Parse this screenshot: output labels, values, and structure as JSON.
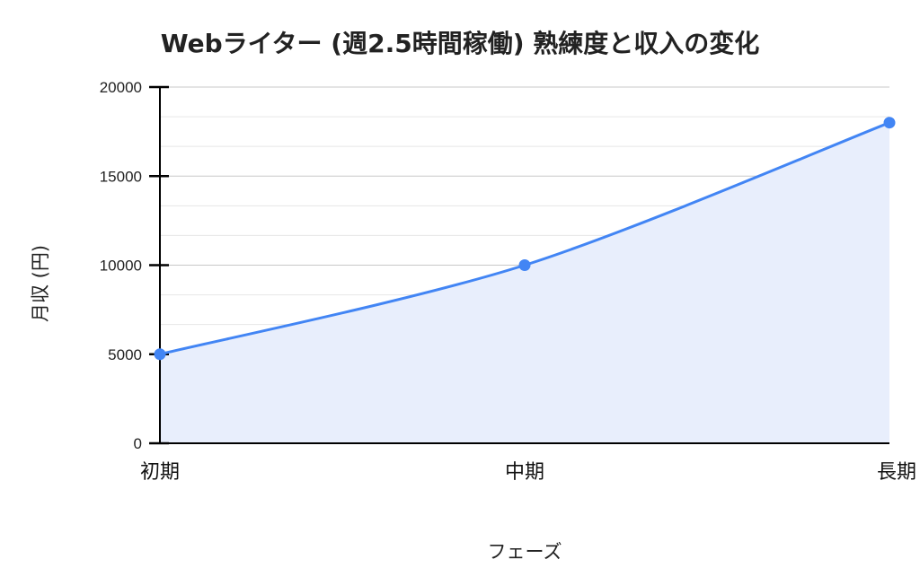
{
  "chart_data": {
    "type": "area",
    "title": "Webライター (週2.5時間稼働)  熟練度と収入の変化",
    "xlabel": "フェーズ",
    "ylabel": "月収 (円)",
    "categories": [
      "初期",
      "中期",
      "長期"
    ],
    "series": [
      {
        "values": [
          5000,
          10000,
          18000
        ]
      }
    ],
    "ylim": [
      0,
      20000
    ],
    "yticks": [
      0,
      5000,
      10000,
      15000,
      20000
    ],
    "grid": true,
    "colors": {
      "line": "#4285f4",
      "fill": "#e8eefc",
      "grid": "#d8d8d8",
      "axis": "#000000"
    }
  }
}
